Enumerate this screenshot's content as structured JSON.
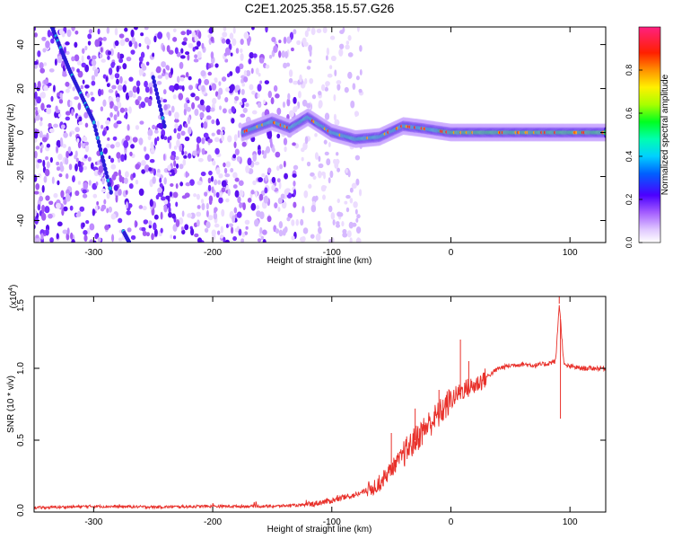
{
  "title": "C2E1.2025.358.15.57.G26",
  "chart_data": [
    {
      "type": "heatmap",
      "name": "spectrogram",
      "xlabel": "Height of straight line (km)",
      "ylabel": "Frequency (Hz)",
      "xlim": [
        -350,
        130
      ],
      "ylim": [
        -50,
        48
      ],
      "xticks": [
        -300,
        -200,
        -100,
        0,
        100
      ],
      "yticks": [
        -40,
        -20,
        0,
        20,
        40
      ],
      "colorbar": {
        "label": "Normalized spectral amplitude",
        "range": [
          0,
          1
        ],
        "ticks": [
          0.0,
          0.2,
          0.4,
          0.6,
          0.8
        ]
      },
      "features": {
        "main_track": [
          [
            -175,
            0
          ],
          [
            -150,
            5
          ],
          [
            -135,
            2
          ],
          [
            -120,
            7
          ],
          [
            -100,
            0
          ],
          [
            -80,
            -3
          ],
          [
            -60,
            -2
          ],
          [
            -40,
            3
          ],
          [
            -25,
            2
          ],
          [
            0,
            0
          ],
          [
            50,
            0
          ],
          [
            130,
            0
          ]
        ],
        "diagonal_streak_1": [
          [
            -335,
            48
          ],
          [
            -320,
            28
          ],
          [
            -300,
            5
          ],
          [
            -285,
            -28
          ]
        ],
        "diagonal_streak_2": [
          [
            -275,
            -45
          ],
          [
            -270,
            -50
          ]
        ],
        "diagonal_streak_3": [
          [
            -250,
            25
          ],
          [
            -240,
            2
          ]
        ]
      }
    },
    {
      "type": "line",
      "name": "snr",
      "xlabel": "Height of straight line (km)",
      "ylabel": "SNR (10 * v/v)",
      "scale_label": "(x10",
      "scale_exp": "4",
      "xlim": [
        -350,
        130
      ],
      "ylim": [
        0,
        1.5
      ],
      "xticks": [
        -300,
        -200,
        -100,
        0,
        100
      ],
      "yticks": [
        0.0,
        0.5,
        1.0,
        1.5
      ],
      "ytick_labels": [
        "0.0",
        "0.5",
        "1.0",
        "1.5"
      ],
      "color": "#e8302a",
      "series": [
        {
          "name": "SNR",
          "x": [
            -350,
            -300,
            -250,
            -200,
            -150,
            -120,
            -100,
            -80,
            -70,
            -60,
            -50,
            -40,
            -30,
            -20,
            -10,
            0,
            10,
            20,
            30,
            40,
            50,
            60,
            70,
            80,
            88,
            91,
            95,
            110,
            130
          ],
          "y": [
            0.03,
            0.04,
            0.035,
            0.04,
            0.04,
            0.05,
            0.08,
            0.12,
            0.15,
            0.2,
            0.3,
            0.4,
            0.5,
            0.6,
            0.68,
            0.78,
            0.85,
            0.88,
            0.94,
            1.0,
            1.02,
            1.03,
            1.02,
            1.03,
            1.05,
            1.45,
            1.02,
            1.0,
            1.0
          ]
        }
      ],
      "spikes": [
        [
          -50,
          0.55
        ],
        [
          -30,
          0.72
        ],
        [
          -10,
          0.85
        ],
        [
          8,
          1.2
        ],
        [
          15,
          1.05
        ],
        [
          91,
          1.5
        ],
        [
          92,
          0.65
        ]
      ]
    }
  ]
}
